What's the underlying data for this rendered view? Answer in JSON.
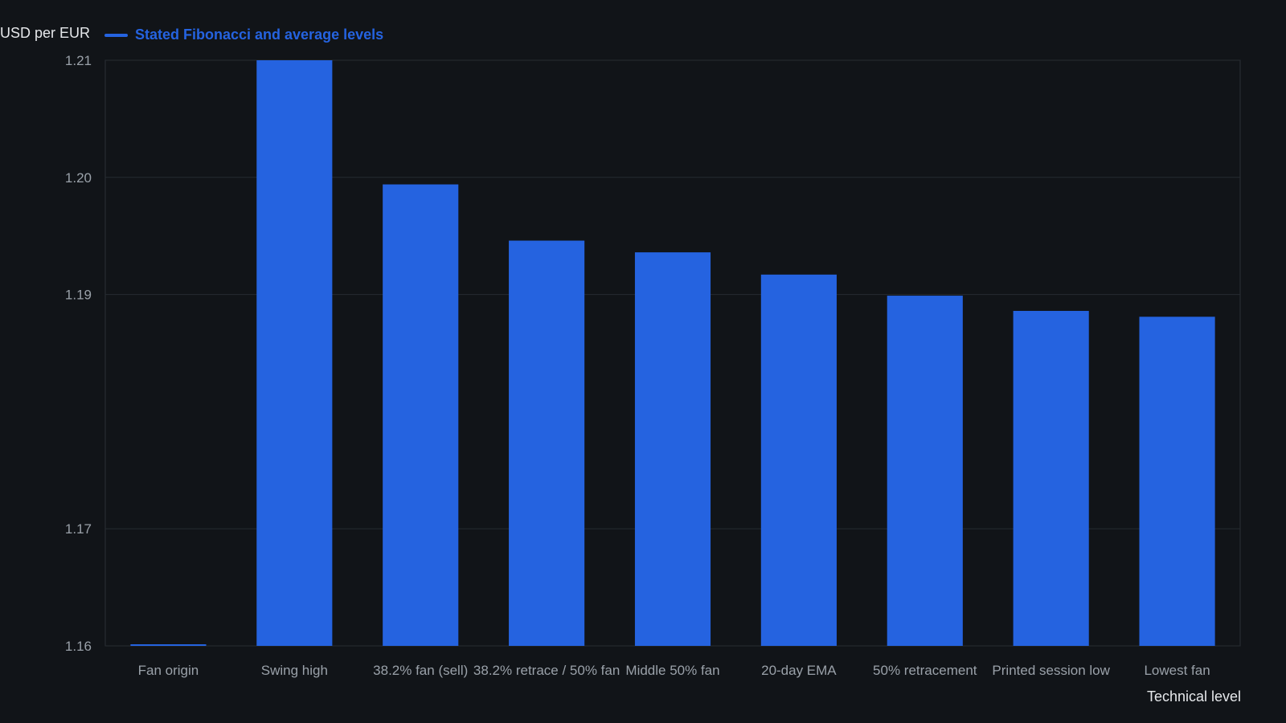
{
  "chart_data": {
    "type": "bar",
    "title": "",
    "ylabel": "USD per EUR",
    "xlabel": "Technical level",
    "legend": {
      "placement": "top-left",
      "entries": [
        "Stated Fibonacci and average levels"
      ]
    },
    "categories": [
      "Fan origin",
      "Swing high",
      "38.2% fan (sell)",
      "38.2% retrace / 50% fan",
      "Middle 50% fan",
      "20-day EMA",
      "50% retracement",
      "Printed session low",
      "Lowest fan"
    ],
    "series": [
      {
        "name": "Stated Fibonacci and average levels",
        "color": "#2563e0",
        "values": [
          1.16,
          1.21,
          1.1994,
          1.1946,
          1.1936,
          1.1917,
          1.1899,
          1.1886,
          1.1881
        ]
      }
    ],
    "yticks": [
      1.16,
      1.17,
      1.19,
      1.2,
      1.21
    ],
    "ylim": [
      1.16,
      1.21
    ],
    "grid": true
  }
}
